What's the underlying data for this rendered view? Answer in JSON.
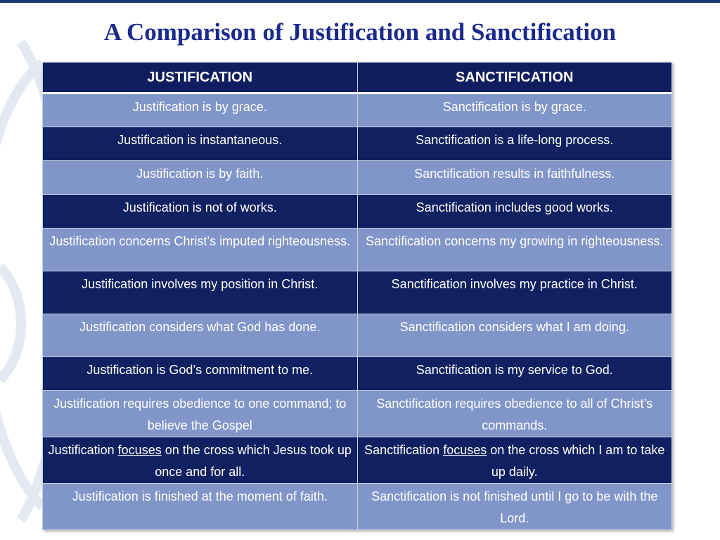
{
  "title": "A Comparison of Justification and Sanctification",
  "table": {
    "header": [
      "JUSTIFICATION",
      "SANCTIFICATION"
    ],
    "rows": [
      [
        "Justification is by grace.",
        "Sanctification is by grace."
      ],
      [
        "Justification is instantaneous.",
        "Sanctification is a life-long process."
      ],
      [
        "Justification is by faith.",
        "Sanctification results in faithfulness."
      ],
      [
        "Justification is not of works.",
        "Sanctification includes good works."
      ],
      [
        "Justification concerns Christ’s imputed righteousness.",
        "Sanctification concerns my growing in righteousness."
      ],
      [
        "Justification involves my position in Christ.",
        "Sanctification involves my practice in Christ."
      ],
      [
        "Justification considers what God has done.",
        "Sanctification considers what I am doing."
      ],
      [
        "Justification is God’s commitment to me.",
        "Sanctification is my service to God."
      ],
      [
        "Justification requires obedience to one command; to believe the Gospel",
        "Sanctification requires obedience to all of Christ’s commands."
      ],
      [
        [
          "Justification ",
          "focuses",
          " on the cross which Jesus took up once and for all."
        ],
        [
          "Sanctification ",
          "focuses",
          " on the cross which I am to take up daily."
        ]
      ],
      [
        "Justification is finished at the moment of faith.",
        "Sanctification is not finished until I go to be with the Lord."
      ]
    ]
  }
}
